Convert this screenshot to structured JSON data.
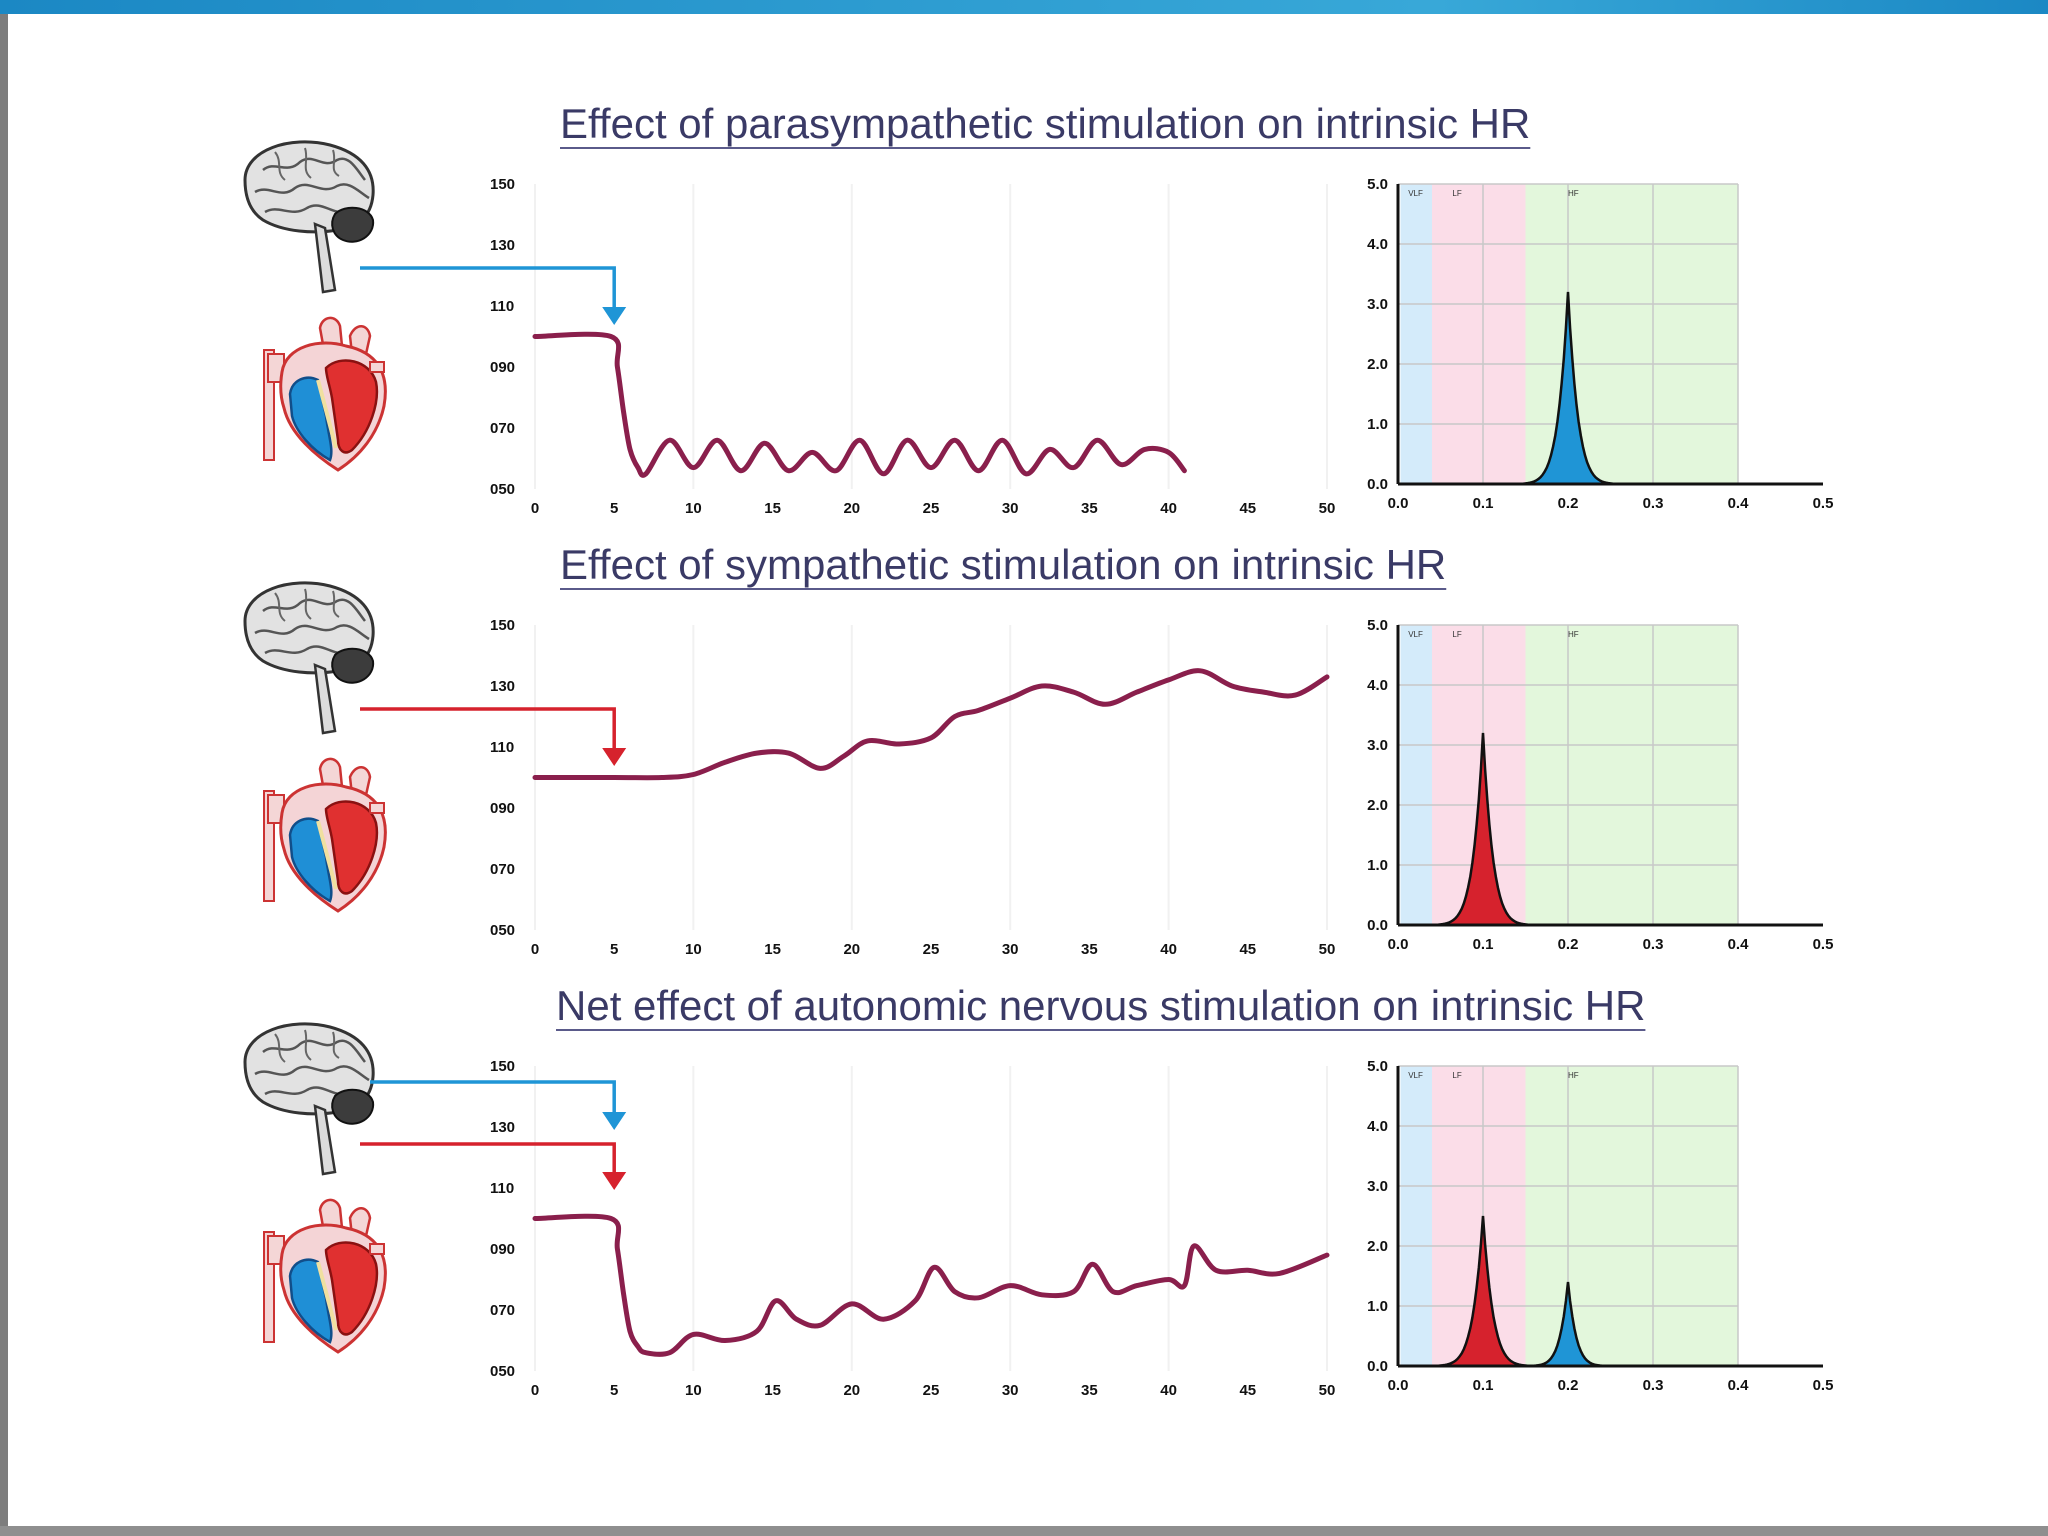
{
  "colors": {
    "hr_line": "#8a1f4c",
    "parasympathetic": "#1f95d6",
    "sympathetic": "#d6222d",
    "vlf_band": "#d4ebfa",
    "lf_band": "#fbdde8",
    "hf_band": "#e3f7dc",
    "title": "#3a3a66"
  },
  "panels": [
    {
      "title": "Effect of parasympathetic stimulation on intrinsic HR",
      "arrows": [
        "parasympathetic"
      ]
    },
    {
      "title": "Effect of sympathetic stimulation on intrinsic HR",
      "arrows": [
        "sympathetic"
      ]
    },
    {
      "title": "Net effect of autonomic nervous stimulation on intrinsic HR",
      "arrows": [
        "parasympathetic",
        "sympathetic"
      ]
    }
  ],
  "chart_data": [
    {
      "type": "line",
      "title": "Effect of parasympathetic stimulation on intrinsic HR",
      "xlabel": "",
      "ylabel": "",
      "xlim": [
        0,
        50
      ],
      "ylim": [
        50,
        150
      ],
      "x_ticks": [
        "0",
        "5",
        "10",
        "15",
        "20",
        "25",
        "30",
        "35",
        "40",
        "45",
        "50"
      ],
      "y_ticks": [
        "150",
        "130",
        "110",
        "090",
        "070",
        "050"
      ],
      "series": [
        {
          "name": "HR",
          "x": [
            0,
            4.8,
            5.2,
            5.6,
            6,
            6.5,
            7,
            8.5,
            10,
            11.5,
            13,
            14.5,
            16,
            17.5,
            19,
            20.5,
            22,
            23.5,
            25,
            26.5,
            28,
            29.5,
            31,
            32.5,
            34,
            35.5,
            37,
            38.5,
            40,
            41
          ],
          "y": [
            100,
            100,
            90,
            75,
            63,
            57,
            55,
            66,
            57,
            66,
            56,
            65,
            56,
            62,
            56,
            66,
            55,
            66,
            57,
            66,
            56,
            66,
            55,
            63,
            57,
            66,
            58,
            63,
            62,
            56
          ]
        }
      ]
    },
    {
      "type": "area",
      "title": "Effect of parasympathetic stimulation on intrinsic HR",
      "xlabel": "",
      "ylabel": "",
      "xlim": [
        0,
        0.5
      ],
      "ylim": [
        0,
        5
      ],
      "x_ticks": [
        "0.0",
        "0.1",
        "0.2",
        "0.3",
        "0.4",
        "0.5"
      ],
      "y_ticks": [
        "5.0",
        "4.0",
        "3.0",
        "2.0",
        "1.0",
        "0.0"
      ],
      "band_labels": [
        "VLF",
        "LF",
        "HF"
      ],
      "peaks": [
        {
          "center": 0.2,
          "height": 3.2,
          "width": 0.011,
          "band": "HF",
          "color": "#1f95d6"
        }
      ]
    },
    {
      "type": "line",
      "title": "Effect of sympathetic stimulation on intrinsic HR",
      "xlabel": "",
      "ylabel": "",
      "xlim": [
        0,
        50
      ],
      "ylim": [
        50,
        150
      ],
      "x_ticks": [
        "0",
        "5",
        "10",
        "15",
        "20",
        "25",
        "30",
        "35",
        "40",
        "45",
        "50"
      ],
      "y_ticks": [
        "150",
        "130",
        "110",
        "090",
        "070",
        "050"
      ],
      "series": [
        {
          "name": "HR",
          "x": [
            0,
            5,
            8,
            10,
            12,
            14,
            16,
            18,
            19.5,
            21,
            23,
            25,
            26.5,
            28,
            30,
            32,
            34,
            36,
            38,
            40,
            42,
            44,
            46,
            48,
            50
          ],
          "y": [
            100,
            100,
            100,
            101,
            105,
            108,
            108,
            103,
            107,
            112,
            111,
            113,
            120,
            122,
            126,
            130,
            128,
            124,
            128,
            132,
            135,
            130,
            128,
            127,
            133
          ]
        }
      ]
    },
    {
      "type": "area",
      "title": "Effect of sympathetic stimulation on intrinsic HR",
      "xlabel": "",
      "ylabel": "",
      "xlim": [
        0,
        0.5
      ],
      "ylim": [
        0,
        5
      ],
      "x_ticks": [
        "0.0",
        "0.1",
        "0.2",
        "0.3",
        "0.4",
        "0.5"
      ],
      "y_ticks": [
        "5.0",
        "4.0",
        "3.0",
        "2.0",
        "1.0",
        "0.0"
      ],
      "band_labels": [
        "VLF",
        "LF",
        "HF"
      ],
      "peaks": [
        {
          "center": 0.1,
          "height": 3.2,
          "width": 0.011,
          "band": "LF",
          "color": "#d6222d"
        }
      ]
    },
    {
      "type": "line",
      "title": "Net effect of autonomic nervous stimulation on intrinsic HR",
      "xlabel": "",
      "ylabel": "",
      "xlim": [
        0,
        50
      ],
      "ylim": [
        50,
        150
      ],
      "x_ticks": [
        "0",
        "5",
        "10",
        "15",
        "20",
        "25",
        "30",
        "35",
        "40",
        "45",
        "50"
      ],
      "y_ticks": [
        "150",
        "130",
        "110",
        "090",
        "070",
        "050"
      ],
      "series": [
        {
          "name": "HR",
          "x": [
            0,
            4.8,
            5.2,
            5.6,
            6,
            6.5,
            7,
            8.5,
            10,
            12,
            14,
            15.2,
            16.5,
            18,
            20,
            22,
            24,
            25.2,
            26.5,
            28,
            30,
            32,
            34,
            35.2,
            36.5,
            38,
            40,
            41,
            41.6,
            43,
            45,
            47,
            50
          ],
          "y": [
            100,
            100,
            90,
            75,
            63,
            58,
            56,
            56,
            62,
            60,
            63,
            73,
            67,
            65,
            72,
            67,
            73,
            84,
            76,
            74,
            78,
            75,
            76,
            85,
            76,
            78,
            80,
            78,
            91,
            83,
            83,
            82,
            88
          ]
        }
      ]
    },
    {
      "type": "area",
      "title": "Net effect of autonomic nervous stimulation on intrinsic HR",
      "xlabel": "",
      "ylabel": "",
      "xlim": [
        0,
        0.5
      ],
      "ylim": [
        0,
        5
      ],
      "x_ticks": [
        "0.0",
        "0.1",
        "0.2",
        "0.3",
        "0.4",
        "0.5"
      ],
      "y_ticks": [
        "5.0",
        "4.0",
        "3.0",
        "2.0",
        "1.0",
        "0.0"
      ],
      "band_labels": [
        "VLF",
        "LF",
        "HF"
      ],
      "peaks": [
        {
          "center": 0.1,
          "height": 2.5,
          "width": 0.011,
          "band": "LF",
          "color": "#d6222d"
        },
        {
          "center": 0.2,
          "height": 1.4,
          "width": 0.009,
          "band": "HF",
          "color": "#1f95d6"
        }
      ]
    }
  ]
}
